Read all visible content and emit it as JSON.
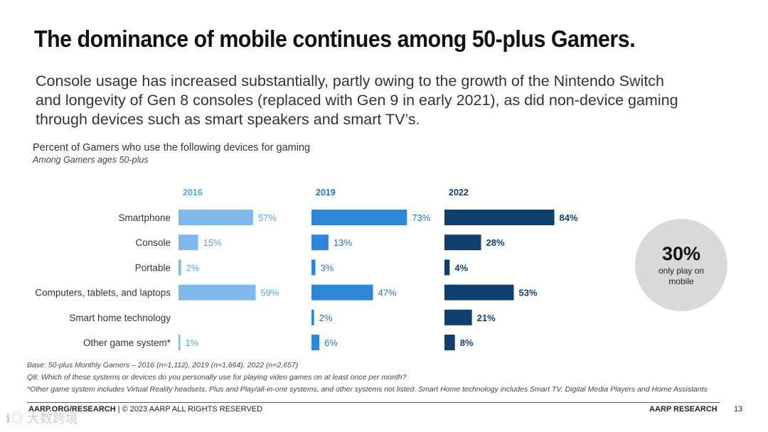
{
  "title": "The dominance of mobile continues among 50-plus Gamers.",
  "subtitle_lines": [
    "Console usage has increased substantially, partly owing to the growth of the Nintendo Switch",
    "and longevity of Gen 8 consoles (replaced with Gen 9 in early 2021), as did non-device gaming",
    "through devices such as smart speakers and smart TV’s."
  ],
  "chart_heading": "Percent of Gamers who use the following devices for gaming",
  "chart_subheading": "Among Gamers ages 50-plus",
  "chart_data": {
    "type": "bar",
    "orientation": "horizontal",
    "categories": [
      "Smartphone",
      "Console",
      "Portable",
      "Computers, tablets, and laptops",
      "Smart home technology",
      "Other game system*"
    ],
    "series": [
      {
        "name": "2016",
        "values": [
          57,
          15,
          2,
          59,
          null,
          1
        ],
        "color": "#7fb8ea",
        "label_color": "#5ba3e0"
      },
      {
        "name": "2019",
        "values": [
          73,
          13,
          3,
          47,
          2,
          6
        ],
        "color": "#2e86d6",
        "label_color": "#2a6fb5"
      },
      {
        "name": "2022",
        "values": [
          84,
          28,
          4,
          53,
          21,
          8
        ],
        "color": "#0e3f6e",
        "label_color": "#0e3f6e"
      }
    ],
    "value_suffix": "%",
    "xlim": [
      0,
      100
    ],
    "legend": "none",
    "grid": false
  },
  "callout": {
    "value": "30%",
    "text": "only play on mobile"
  },
  "notes": [
    "Base: 50-plus Monthly Gamers – 2016 (n=1,112), 2019 (n=1,664), 2022 (n=2,657)",
    "Q8: Which of these systems or devices do you personally use for playing video games on at least once per month?",
    "*Other game system includes Virtual Reality headsets, Plus and Play/all-in-one systems, and other systems not listed. Smart Home technology includes Smart TV, Digital Media Players and Home Assistants"
  ],
  "footer": {
    "left_bold": "AARP.ORG/RESEARCH",
    "left_rest": " | © 2023 AARP ALL RIGHTS RESERVED",
    "right": "AARP RESEARCH",
    "page": "13"
  },
  "watermark": "ℹ◎ 大数跨境"
}
